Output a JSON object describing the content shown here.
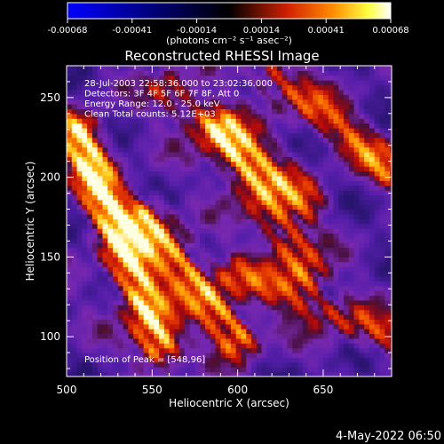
{
  "chart_data": {
    "type": "heatmap",
    "title": "Reconstructed RHESSI Image",
    "xlabel": "Heliocentric X (arcsec)",
    "ylabel": "Heliocentric Y (arcsec)",
    "xlim": [
      500,
      690
    ],
    "ylim": [
      75,
      270
    ],
    "xticks": [
      "500",
      "550",
      "600",
      "650"
    ],
    "yticks": [
      "100",
      "150",
      "200",
      "250"
    ],
    "colorbar": {
      "ticks": [
        "-0.00068",
        "-0.00041",
        "-0.00014",
        "0.00014",
        "0.00041",
        "0.00068"
      ],
      "unit_label": "(photons cm⁻² s⁻¹ asec⁻²)",
      "range": [
        -0.00068,
        0.00068
      ]
    },
    "annotations": [
      "28-Jul-2003 22:58:36.000 to 23:02:36.000",
      "Detectors: 3F 4F 5F 6F 7F 8F, Att 0",
      "Energy Range: 12.0 - 25.0 keV",
      "Clean    Total counts: 5.12E+03"
    ],
    "peak_label": "Position of Peak = [548,96]",
    "peak_position": [
      548,
      96
    ],
    "ridges": [
      {
        "from": [
          507,
          228
        ],
        "to": [
          555,
          95
        ],
        "peak": 1.0
      },
      {
        "from": [
          545,
          175
        ],
        "to": [
          600,
          100
        ],
        "peak": 0.78
      },
      {
        "from": [
          590,
          230
        ],
        "to": [
          640,
          140
        ],
        "peak": 0.62
      },
      {
        "from": [
          620,
          265
        ],
        "to": [
          688,
          205
        ],
        "peak": 0.55
      },
      {
        "from": [
          560,
          255
        ],
        "to": [
          640,
          185
        ],
        "peak": 0.48
      },
      {
        "from": [
          600,
          140
        ],
        "to": [
          688,
          100
        ],
        "peak": 0.45
      }
    ]
  },
  "footer": {
    "date": "4-May-2022 06:50"
  }
}
